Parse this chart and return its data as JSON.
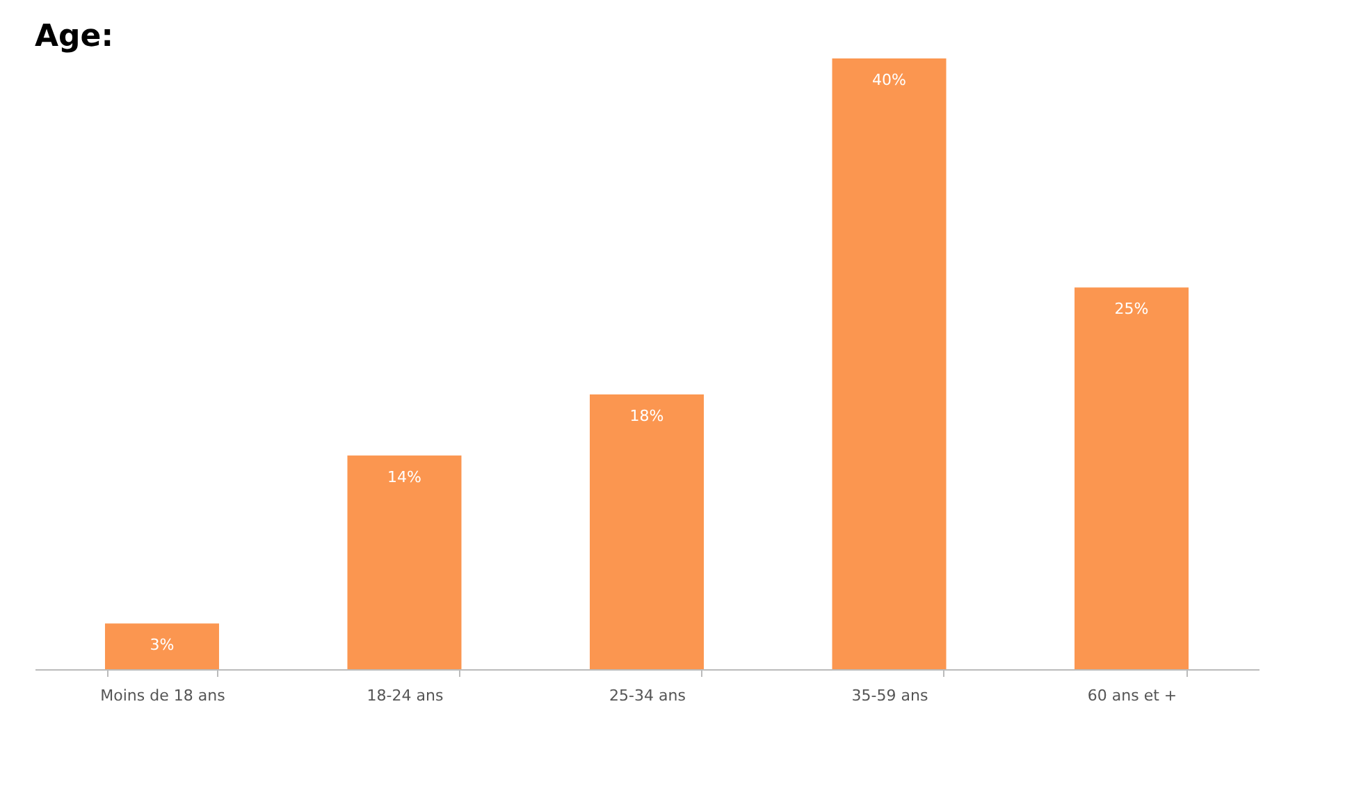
{
  "chart_data": {
    "type": "bar",
    "title": "Age:",
    "categories": [
      "Moins de 18 ans",
      "18-24 ans",
      "25-34 ans",
      "35-59 ans",
      "60 ans et +"
    ],
    "values": [
      3,
      14,
      18,
      40,
      25
    ],
    "value_labels": [
      "3%",
      "14%",
      "18%",
      "40%",
      "25%"
    ],
    "color": "#fb9650",
    "grid": false
  }
}
